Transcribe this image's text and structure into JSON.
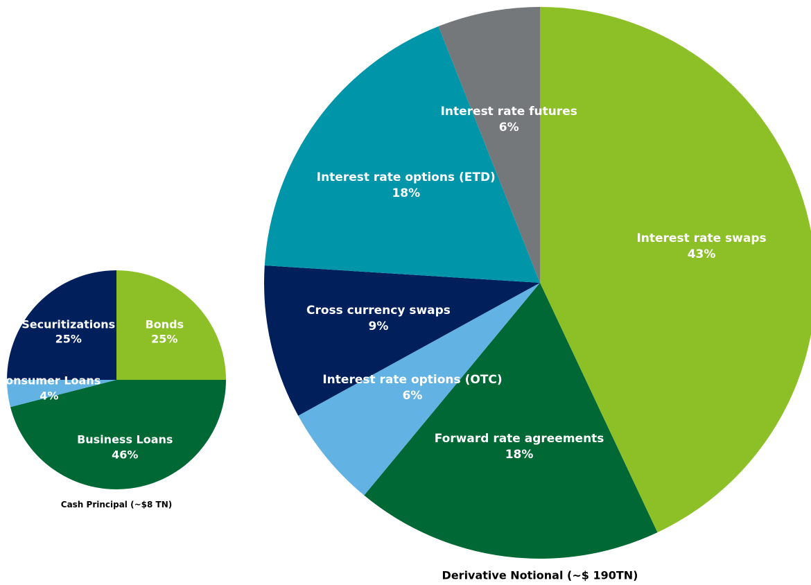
{
  "chart_data": [
    {
      "type": "pie",
      "title": "Cash Principal (~$8 TN)",
      "categories": [
        "Bonds",
        "Business Loans",
        "Consumer Loans",
        "Securitizations"
      ],
      "values": [
        25,
        46,
        4,
        25
      ],
      "value_labels": [
        "25%",
        "46%",
        "4%",
        "25%"
      ],
      "colors": [
        "#8dc027",
        "#006834",
        "#62b3e4",
        "#001f5b"
      ]
    },
    {
      "type": "pie",
      "title": "Derivative Notional (~$ 190TN)",
      "categories": [
        "Interest rate swaps",
        "Forward rate agreements",
        "Interest rate options (OTC)",
        "Cross currency swaps",
        "Interest rate options (ETD)",
        "Interest rate futures"
      ],
      "values": [
        43,
        18,
        6,
        9,
        18,
        6
      ],
      "value_labels": [
        "43%",
        "18%",
        "6%",
        "9%",
        "18%",
        "6%"
      ],
      "colors": [
        "#8dc027",
        "#006834",
        "#62b3e4",
        "#001f5b",
        "#0095a8",
        "#75787b"
      ]
    }
  ]
}
